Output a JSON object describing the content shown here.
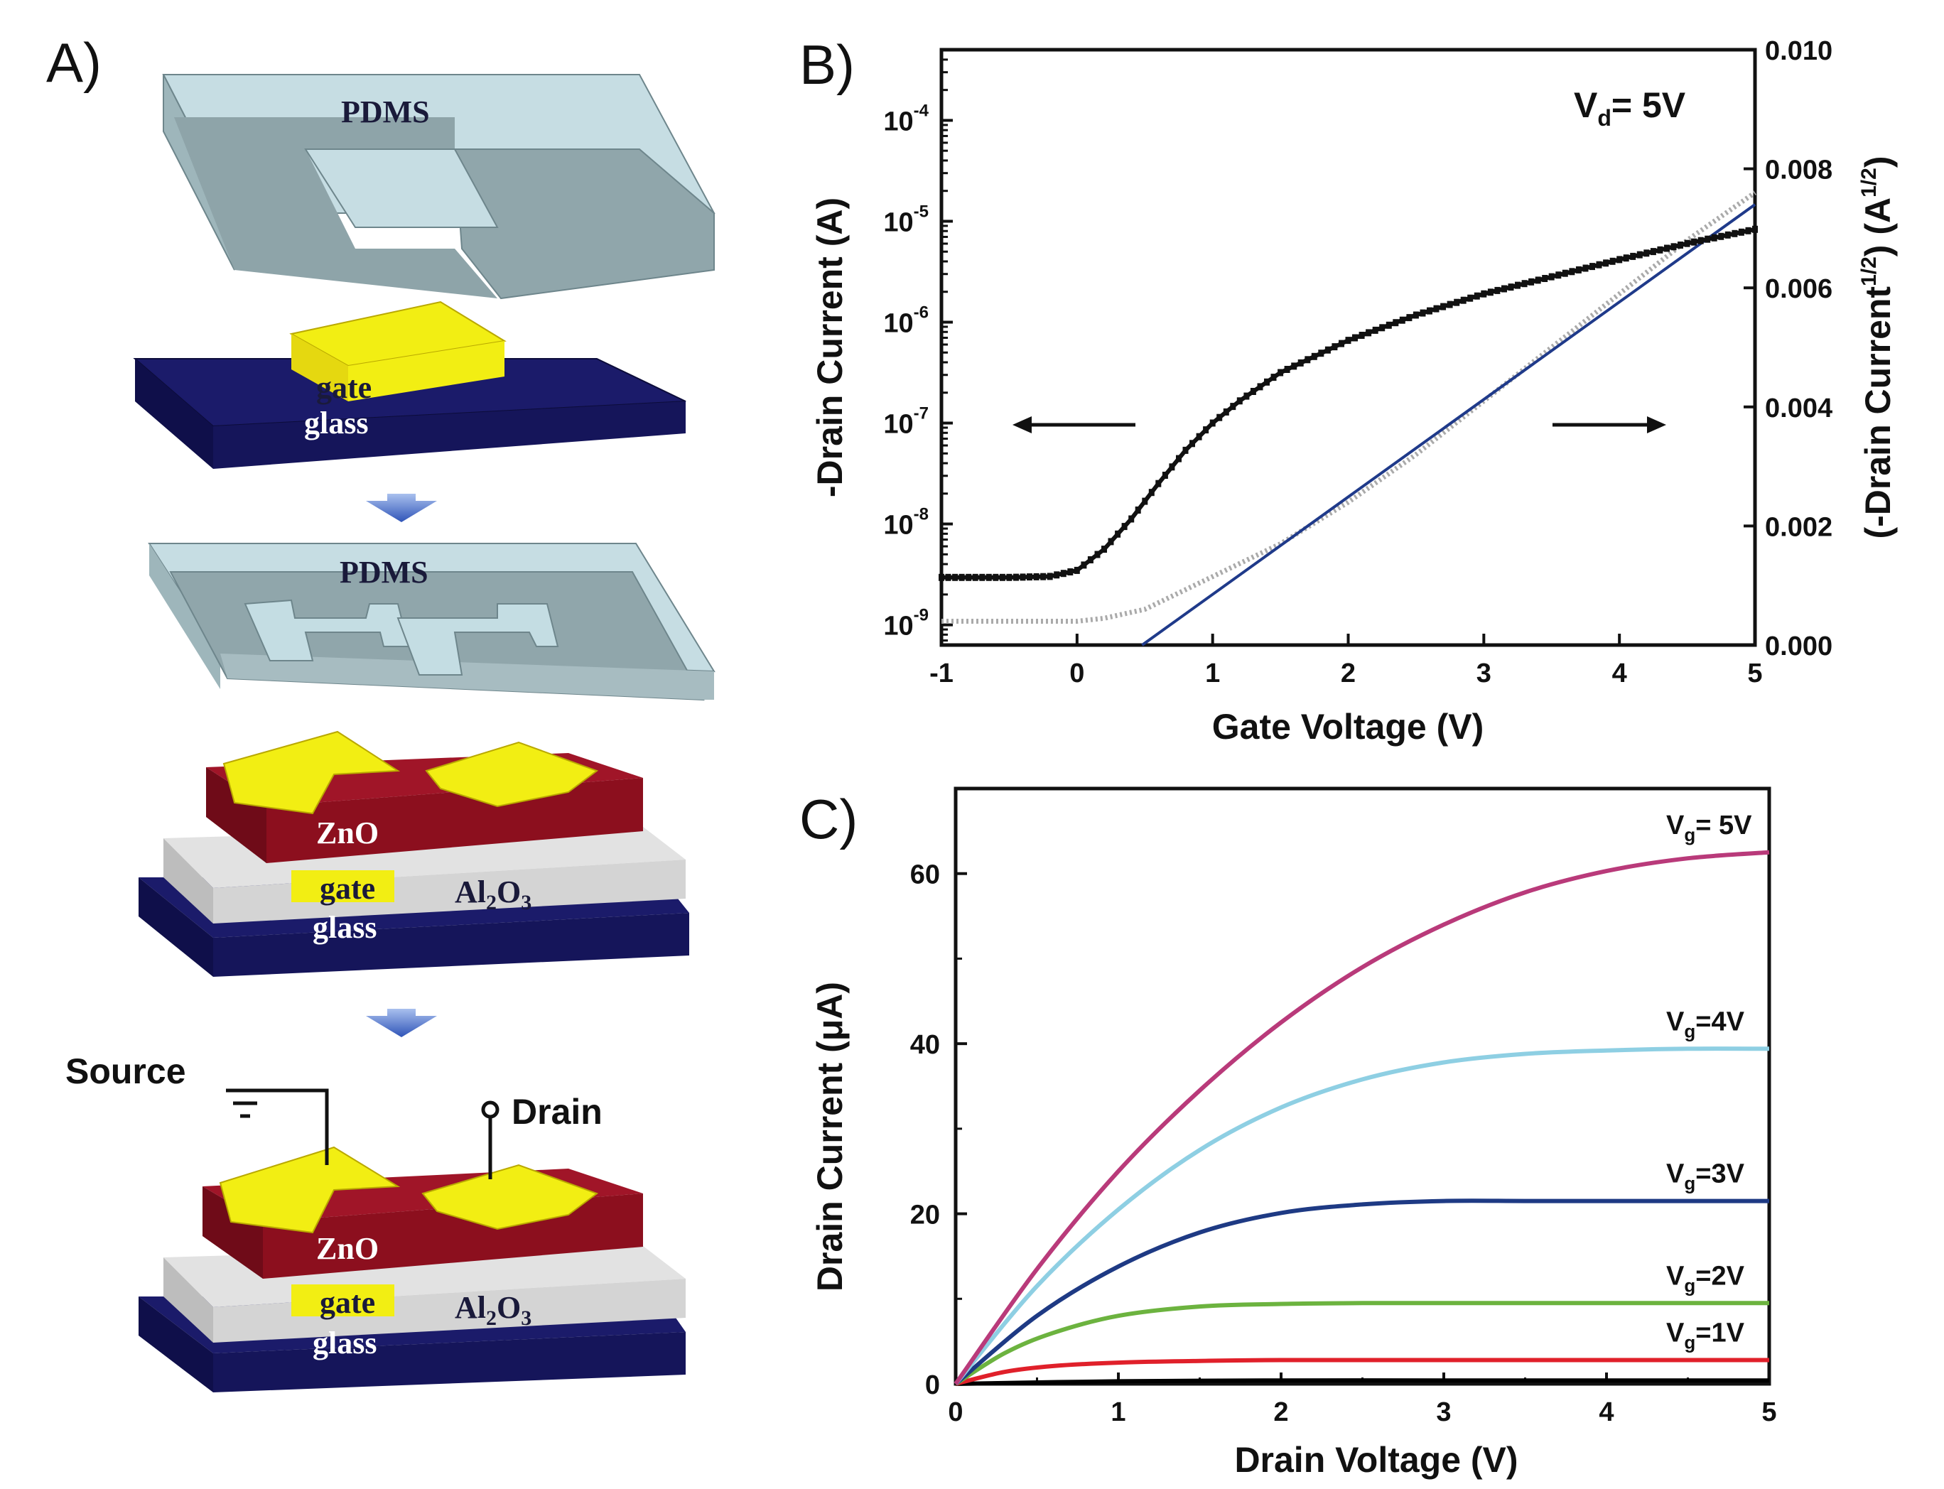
{
  "panels": {
    "a": {
      "letter": "A)",
      "labels": {
        "pdms": "PDMS",
        "gate": "gate",
        "glass": "glass",
        "zno": "ZnO",
        "al2o3_main": "Al",
        "al2o3_sub2": "2",
        "al2o3_o": "O",
        "al2o3_sub3": "3",
        "source": "Source",
        "drain": "Drain"
      },
      "colors": {
        "pdms": "#8fa6ab",
        "pdms_light": "#c4dde3",
        "gold": "#f2ee13",
        "zno": "#8c0f1e",
        "al2o3": "#d4d4d4",
        "glass": "#13134f",
        "arrow": "#3b63c4"
      }
    },
    "b": {
      "letter": "B)",
      "annotation": {
        "main": "V",
        "sub": "d",
        "rest": "= 5V"
      }
    },
    "c": {
      "letter": "C)"
    }
  },
  "chart_data": [
    {
      "id": "transfer",
      "type": "line",
      "xlabel": "Gate Voltage (V)",
      "ylabel_left": "-Drain Current (A)",
      "ylabel_right": {
        "main": "(-Drain Current",
        "sup1": "1/2",
        "mid": ") (A",
        "sup2": "1/2",
        "end": ")"
      },
      "xlim": [
        -1,
        5
      ],
      "xticks": [
        -1,
        0,
        1,
        2,
        3,
        4,
        5
      ],
      "ylim_left_log10": [
        -9.2,
        -3.3
      ],
      "yticks_left": [
        {
          "exp": -9,
          "base": "10",
          "sup": "-9"
        },
        {
          "exp": -8,
          "base": "10",
          "sup": "-8"
        },
        {
          "exp": -7,
          "base": "10",
          "sup": "-7"
        },
        {
          "exp": -6,
          "base": "10",
          "sup": "-6"
        },
        {
          "exp": -5,
          "base": "10",
          "sup": "-5"
        },
        {
          "exp": -4,
          "base": "10",
          "sup": "-4"
        }
      ],
      "ylim_right": [
        0.0,
        0.01
      ],
      "yticks_right": [
        "0.000",
        "0.002",
        "0.004",
        "0.006",
        "0.008",
        "0.010"
      ],
      "yticks_right_values": [
        0.0,
        0.002,
        0.004,
        0.006,
        0.008,
        0.01
      ],
      "series": [
        {
          "name": "-Drain Current (log)",
          "axis": "left",
          "color": "#111111",
          "x": [
            -1,
            -0.5,
            -0.2,
            0,
            0.2,
            0.4,
            0.6,
            0.8,
            1.0,
            1.2,
            1.5,
            2.0,
            2.5,
            3.0,
            3.5,
            4.0,
            4.5,
            5.0
          ],
          "log10_y": [
            -8.53,
            -8.53,
            -8.52,
            -8.46,
            -8.25,
            -7.95,
            -7.6,
            -7.27,
            -7.0,
            -6.78,
            -6.5,
            -6.18,
            -5.93,
            -5.72,
            -5.55,
            -5.38,
            -5.22,
            -5.08
          ]
        },
        {
          "name": "(-Drain Current)^1/2",
          "axis": "right",
          "color": "#aaaaaa",
          "x": [
            -1,
            -0.5,
            0,
            0.2,
            0.5,
            1.0,
            1.5,
            2.0,
            2.5,
            3.0,
            3.5,
            4.0,
            4.5,
            5.0
          ],
          "y": [
            0.0004,
            0.0004,
            0.0004,
            0.00045,
            0.0006,
            0.00115,
            0.0017,
            0.0024,
            0.0032,
            0.0041,
            0.005,
            0.0059,
            0.0068,
            0.0076
          ]
        },
        {
          "name": "linear fit",
          "axis": "right",
          "color": "#1f3a8a",
          "x": [
            0.48,
            5.0
          ],
          "y": [
            0.0,
            0.0074
          ]
        }
      ]
    },
    {
      "id": "output",
      "type": "line",
      "xlabel": "Drain Voltage (V)",
      "ylabel": "Drain Current (μA)",
      "xlim": [
        0,
        5
      ],
      "xticks": [
        0,
        1,
        2,
        3,
        4,
        5
      ],
      "ylim": [
        0,
        70
      ],
      "yticks": [
        0,
        20,
        40,
        60
      ],
      "series": [
        {
          "name": "Vg=0V",
          "label_main": "",
          "label_sub": "",
          "label_rest": "",
          "color": "#000000",
          "x": [
            0,
            1,
            2,
            3,
            4,
            5
          ],
          "y": [
            0,
            0.3,
            0.4,
            0.4,
            0.4,
            0.4
          ]
        },
        {
          "name": "Vg=1V",
          "label_main": "V",
          "label_sub": "g",
          "label_rest": "=1V",
          "color": "#e0202a",
          "x": [
            0,
            0.3,
            0.6,
            1.0,
            1.5,
            2,
            3,
            4,
            5
          ],
          "y": [
            0,
            1.4,
            2.1,
            2.5,
            2.7,
            2.8,
            2.8,
            2.8,
            2.8
          ]
        },
        {
          "name": "Vg=2V",
          "label_main": "V",
          "label_sub": "g",
          "label_rest": "=2V",
          "color": "#6cb33f",
          "x": [
            0,
            0.3,
            0.6,
            1.0,
            1.5,
            2,
            2.5,
            3,
            4,
            5
          ],
          "y": [
            0,
            3.6,
            6.0,
            8.0,
            9.1,
            9.4,
            9.5,
            9.5,
            9.5,
            9.5
          ]
        },
        {
          "name": "Vg=3V",
          "label_main": "V",
          "label_sub": "g",
          "label_rest": "=3V",
          "color": "#1e3a84",
          "x": [
            0,
            0.5,
            1.0,
            1.5,
            2.0,
            2.5,
            3.0,
            3.5,
            4.0,
            5.0
          ],
          "y": [
            0,
            8.0,
            13.8,
            17.8,
            20.1,
            21.1,
            21.5,
            21.5,
            21.5,
            21.5
          ]
        },
        {
          "name": "Vg=4V",
          "label_main": "V",
          "label_sub": "g",
          "label_rest": "=4V",
          "color": "#8ecfe3",
          "x": [
            0,
            0.5,
            1.0,
            1.5,
            2.0,
            2.5,
            3.0,
            3.5,
            4.0,
            4.5,
            5.0
          ],
          "y": [
            0,
            11.5,
            20.5,
            27.5,
            32.5,
            35.8,
            37.8,
            38.8,
            39.2,
            39.4,
            39.4
          ]
        },
        {
          "name": "Vg=5V",
          "label_main": "V",
          "label_sub": "g",
          "label_rest": "= 5V",
          "color": "#b93a7a",
          "x": [
            0,
            0.5,
            1.0,
            1.5,
            2.0,
            2.5,
            3.0,
            3.5,
            4.0,
            4.5,
            5.0
          ],
          "y": [
            0,
            13.5,
            25.0,
            34.5,
            42.5,
            49.0,
            54.0,
            57.8,
            60.3,
            61.8,
            62.5
          ]
        }
      ]
    }
  ]
}
